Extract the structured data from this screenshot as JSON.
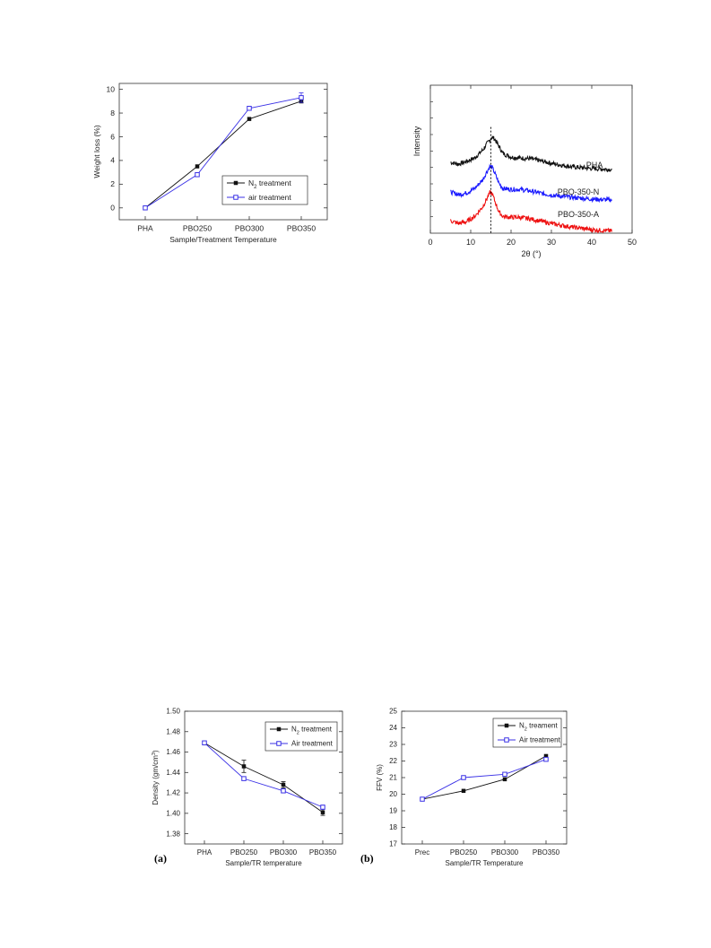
{
  "colors": {
    "black": "#111111",
    "blue": "#3b32e6",
    "xrd_blue": "#1a1aff",
    "red": "#ee1111",
    "axis": "#333333"
  },
  "panel_labels": {
    "a": "(a)",
    "b": "(b)"
  },
  "chart_data": [
    {
      "id": "weight-loss",
      "type": "line",
      "categories": [
        "PHA",
        "PBO250",
        "PBO300",
        "PBO350"
      ],
      "xlabel": "Sample/Treatment Temperature",
      "ylabel": "Weight loss (%)",
      "ylim": [
        -1,
        10.5
      ],
      "yticks": [
        0,
        2,
        4,
        6,
        8,
        10
      ],
      "ytick_labels": [
        "0",
        "2",
        "4",
        "6",
        "8",
        "10"
      ],
      "legend_position": "bottom-right",
      "series": [
        {
          "name_main": "N",
          "name_sub": "2",
          "name_tail": " treatment",
          "color": "#111111",
          "marker": "filled-square",
          "values": [
            0,
            3.5,
            7.5,
            9.0
          ],
          "errors": [
            0,
            0,
            0,
            0.15
          ]
        },
        {
          "name_main": "air treatment",
          "name_sub": "",
          "name_tail": "",
          "color": "#3b32e6",
          "marker": "open-square",
          "values": [
            0,
            2.8,
            8.4,
            9.3
          ],
          "errors": [
            0,
            0.15,
            0,
            0.4
          ]
        }
      ]
    },
    {
      "id": "xrd",
      "type": "line",
      "xlabel_main": "2θ",
      "xlabel_unit": " (°)",
      "ylabel": "Intensity",
      "xlim": [
        0,
        50
      ],
      "xticks": [
        0,
        10,
        20,
        30,
        40,
        50
      ],
      "xtick_labels": [
        "0",
        "10",
        "20",
        "30",
        "40",
        "50"
      ],
      "peak_marker_x": 15,
      "series": [
        {
          "name": "PHA",
          "color": "#111111",
          "offset": 2.0,
          "x": [
            5,
            7,
            9,
            11,
            13,
            14,
            15,
            15.5,
            16,
            17,
            18,
            20,
            22,
            25,
            28,
            31,
            35,
            40,
            45
          ],
          "y": [
            0.55,
            0.45,
            0.6,
            0.8,
            1.25,
            1.6,
            1.9,
            1.95,
            1.85,
            1.45,
            1.05,
            0.85,
            0.8,
            0.75,
            0.6,
            0.45,
            0.3,
            0.2,
            0.15
          ]
        },
        {
          "name": "PBO-350-N",
          "color": "#1a1aff",
          "offset": 1.0,
          "x": [
            5,
            7,
            9,
            11,
            13,
            14,
            14.8,
            15.3,
            16,
            17,
            18,
            20,
            22,
            25,
            28,
            31,
            35,
            40,
            45
          ],
          "y": [
            0.6,
            0.45,
            0.55,
            0.8,
            1.3,
            1.75,
            2.05,
            2.0,
            1.65,
            1.1,
            0.8,
            0.75,
            0.75,
            0.65,
            0.5,
            0.4,
            0.3,
            0.2,
            0.15
          ]
        },
        {
          "name": "PBO-350-A",
          "color": "#ee1111",
          "offset": 0.0,
          "x": [
            5,
            7,
            9,
            11,
            13,
            14,
            14.8,
            15.3,
            16,
            17,
            18,
            20,
            22,
            25,
            28,
            31,
            35,
            40,
            45
          ],
          "y": [
            0.7,
            0.55,
            0.65,
            0.95,
            1.5,
            1.95,
            2.3,
            2.25,
            1.8,
            1.2,
            0.95,
            0.9,
            0.9,
            0.8,
            0.65,
            0.5,
            0.35,
            0.2,
            0.12
          ]
        }
      ]
    },
    {
      "id": "density",
      "type": "line",
      "categories": [
        "PHA",
        "PBO250",
        "PBO300",
        "PBO350"
      ],
      "xlabel": "Sample/TR temperature",
      "ylabel_main": "Density (gm/cm",
      "ylabel_sup": "3",
      "ylabel_tail": ")",
      "ylim": [
        1.37,
        1.5
      ],
      "yticks": [
        1.38,
        1.4,
        1.42,
        1.44,
        1.46,
        1.48,
        1.5
      ],
      "ytick_labels": [
        "1.38",
        "1.40",
        "1.42",
        "1.44",
        "1.46",
        "1.48",
        "1.50"
      ],
      "legend_position": "top-right",
      "series": [
        {
          "name_main": "N",
          "name_sub": "2",
          "name_tail": " treatment",
          "color": "#111111",
          "marker": "filled-square",
          "values": [
            1.469,
            1.446,
            1.428,
            1.401
          ],
          "errors": [
            0.001,
            0.006,
            0.003,
            0.003
          ]
        },
        {
          "name_main": "Air treatment",
          "name_sub": "",
          "name_tail": "",
          "color": "#3b32e6",
          "marker": "open-square",
          "values": [
            1.469,
            1.434,
            1.422,
            1.406
          ],
          "errors": [
            0.001,
            0.001,
            0.002,
            0.002
          ]
        }
      ]
    },
    {
      "id": "ffv",
      "type": "line",
      "categories": [
        "Prec",
        "PBO250",
        "PBO300",
        "PBO350"
      ],
      "xlabel": "Sample/TR Temperature",
      "ylabel": "FFV (%)",
      "ylim": [
        17,
        25
      ],
      "yticks": [
        17,
        18,
        19,
        20,
        21,
        22,
        23,
        24,
        25
      ],
      "ytick_labels": [
        "17",
        "18",
        "19",
        "20",
        "21",
        "22",
        "23",
        "24",
        "25"
      ],
      "legend_position": "top-right",
      "series": [
        {
          "name_main": "N",
          "name_sub": "2",
          "name_tail": " treament",
          "color": "#111111",
          "marker": "filled-square",
          "values": [
            19.7,
            20.2,
            20.9,
            22.3
          ],
          "errors": [
            0,
            0,
            0,
            0
          ]
        },
        {
          "name_main": "Air treatment",
          "name_sub": "",
          "name_tail": "",
          "color": "#3b32e6",
          "marker": "open-square",
          "values": [
            19.7,
            21.0,
            21.2,
            22.1
          ],
          "errors": [
            0,
            0,
            0,
            0
          ]
        }
      ]
    }
  ]
}
